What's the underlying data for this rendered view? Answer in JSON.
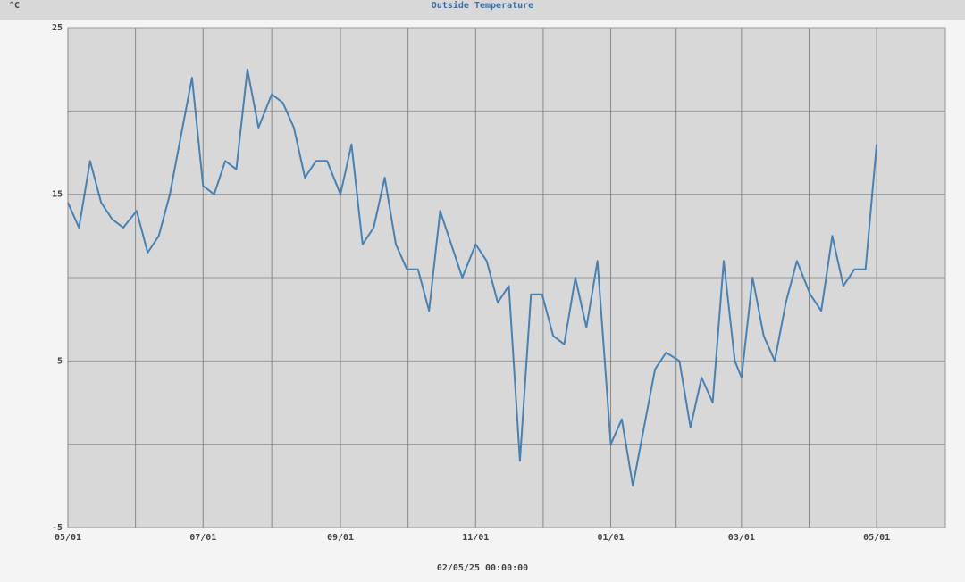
{
  "chart_data": {
    "type": "line",
    "title": "Outside Temperature",
    "unit_label": "°C",
    "footer": "02/05/25 00:00:00",
    "x": [
      "05/01",
      "05/06",
      "05/11",
      "05/16",
      "05/21",
      "05/26",
      "06/01",
      "06/06",
      "06/11",
      "06/16",
      "06/21",
      "06/26",
      "07/01",
      "07/06",
      "07/11",
      "07/16",
      "07/21",
      "07/26",
      "08/01",
      "08/06",
      "08/11",
      "08/16",
      "08/21",
      "08/26",
      "09/01",
      "09/06",
      "09/11",
      "09/16",
      "09/21",
      "09/26",
      "10/01",
      "10/06",
      "10/11",
      "10/16",
      "10/21",
      "10/26",
      "11/01",
      "11/06",
      "11/11",
      "11/16",
      "11/21",
      "11/26",
      "12/01",
      "12/06",
      "12/11",
      "12/16",
      "12/21",
      "12/26",
      "01/01",
      "01/06",
      "01/11",
      "01/16",
      "01/21",
      "01/26",
      "02/01",
      "02/06",
      "02/11",
      "02/16",
      "02/21",
      "02/26",
      "03/01",
      "03/06",
      "03/11",
      "03/16",
      "03/21",
      "03/26",
      "04/01",
      "04/06",
      "04/11",
      "04/16",
      "04/21",
      "04/26",
      "05/01"
    ],
    "series": [
      {
        "name": "Outside Temperature",
        "color": "#4682b4",
        "values": [
          14.5,
          13,
          17,
          14.5,
          13.5,
          13,
          14,
          11.5,
          12.5,
          15,
          18.5,
          22,
          15.5,
          15,
          17,
          16.5,
          22.5,
          19,
          21,
          20.5,
          19,
          16,
          17,
          17,
          15,
          18,
          12,
          13,
          16,
          12,
          10.5,
          10.5,
          8,
          14,
          12,
          10,
          12,
          11,
          8.5,
          9.5,
          -1,
          9,
          9,
          6.5,
          6,
          10,
          7,
          11,
          0,
          1.5,
          -2.5,
          1,
          4.5,
          5.5,
          5,
          1,
          4,
          2.5,
          11,
          5,
          4,
          10,
          6.5,
          5,
          8.5,
          11,
          9,
          8,
          12.5,
          9.5,
          10.5,
          10.5,
          18
        ]
      }
    ],
    "xlim": [
      "05/01",
      "06/01"
    ],
    "xticks": [
      "05/01",
      "07/01",
      "09/01",
      "11/01",
      "01/01",
      "03/01",
      "05/01"
    ],
    "ylim": [
      -5,
      25
    ],
    "yticks": [
      -5,
      5,
      15,
      25
    ],
    "grid": true
  }
}
